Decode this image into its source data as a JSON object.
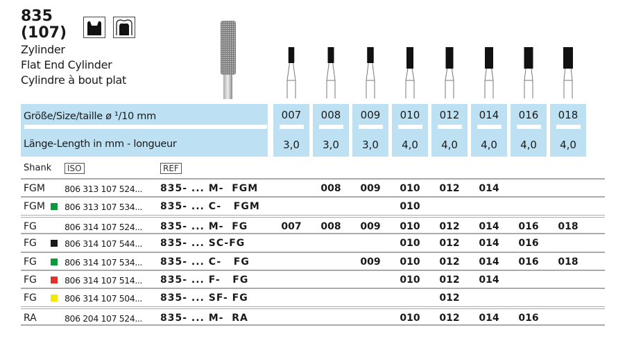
{
  "product": {
    "number": "835",
    "iso_number": "(107)",
    "name_de": "Zylinder",
    "name_en": "Flat End Cylinder",
    "name_fr": "Cylindre à bout plat",
    "icons": [
      "crown-preparation-icon",
      "tooth-crown-icon"
    ]
  },
  "header": {
    "size_label": "Größe/Size/taille  ø ¹/10 mm",
    "length_label": "Länge-Length in mm - longueur"
  },
  "sizes": [
    "007",
    "008",
    "009",
    "010",
    "012",
    "014",
    "016",
    "018"
  ],
  "lengths": [
    "3,0",
    "3,0",
    "3,0",
    "4,0",
    "4,0",
    "4,0",
    "4,0",
    "4,0"
  ],
  "table": {
    "shank_label": "Shank",
    "iso_label": "ISO",
    "ref_label": "REF",
    "rows": [
      {
        "shank": "FGM",
        "color": null,
        "iso": "806 313 107 524...",
        "ref": "835- ... M-  FGM",
        "values": [
          "",
          "008",
          "009",
          "010",
          "012",
          "014",
          "",
          ""
        ]
      },
      {
        "shank": "FGM",
        "color": "#0a9a3c",
        "iso": "806 313 107 534...",
        "ref": "835- ... C-   FGM",
        "values": [
          "",
          "",
          "",
          "010",
          "",
          "",
          "",
          ""
        ]
      },
      {
        "shank": "FG",
        "color": null,
        "iso": "806 314 107 524...",
        "ref": "835- ... M-  FG",
        "values": [
          "007",
          "008",
          "009",
          "010",
          "012",
          "014",
          "016",
          "018"
        ]
      },
      {
        "shank": "FG",
        "color": "#1a1a1a",
        "iso": "806 314 107 544...",
        "ref": "835- ... SC-FG",
        "values": [
          "",
          "",
          "",
          "010",
          "012",
          "014",
          "016",
          ""
        ]
      },
      {
        "shank": "FG",
        "color": "#0a9a3c",
        "iso": "806 314 107 534...",
        "ref": "835- ... C-   FG",
        "values": [
          "",
          "",
          "009",
          "010",
          "012",
          "014",
          "016",
          "018"
        ]
      },
      {
        "shank": "FG",
        "color": "#e2322a",
        "iso": "806 314 107 514...",
        "ref": "835- ... F-   FG",
        "values": [
          "",
          "",
          "",
          "010",
          "012",
          "014",
          "",
          ""
        ]
      },
      {
        "shank": "FG",
        "color": "#f5e800",
        "iso": "806 314 107 504...",
        "ref": "835- ... SF- FG",
        "values": [
          "",
          "",
          "",
          "",
          "012",
          "",
          "",
          ""
        ]
      },
      {
        "shank": "RA",
        "color": null,
        "iso": "806 204 107 524...",
        "ref": "835- ... M-  RA",
        "values": [
          "",
          "",
          "",
          "010",
          "012",
          "014",
          "016",
          ""
        ]
      }
    ]
  }
}
